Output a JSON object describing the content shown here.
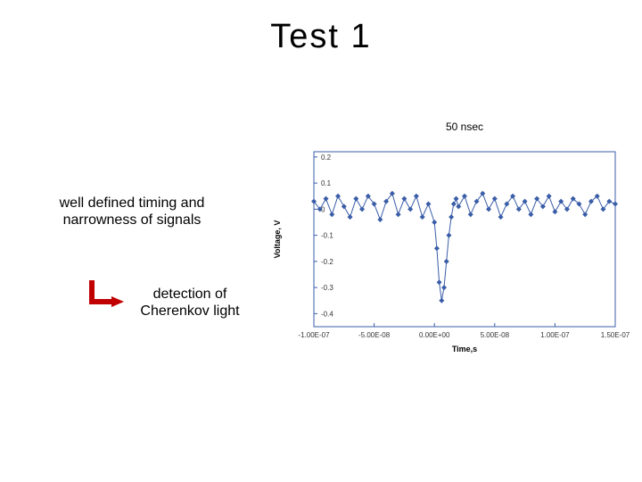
{
  "title": "Test 1",
  "timescale_label": "50 nsec",
  "caption_primary_line1": "well defined timing and",
  "caption_primary_line2": "narrowness of signals",
  "caption_secondary_line1": "detection of",
  "caption_secondary_line2": "Cherenkov light",
  "arrow": {
    "stroke": "#c00000",
    "fill": "#c00000",
    "width": 6
  },
  "chart": {
    "type": "line",
    "xlabel": "Time,s",
    "ylabel": "Voltage, V",
    "label_fontsize": 9,
    "tick_fontsize": 8,
    "xlim": [
      -1e-07,
      1.5e-07
    ],
    "ylim": [
      -0.45,
      0.22
    ],
    "xticks": [
      -1e-07,
      -5e-08,
      0.0,
      5e-08,
      1e-07,
      1.5e-07
    ],
    "xtick_labels": [
      "-1.00E-07",
      "-5.00E-08",
      "0.00E+00",
      "5.00E-08",
      "1.00E-07",
      "1.50E-07"
    ],
    "yticks": [
      -0.4,
      -0.3,
      -0.2,
      -0.1,
      0,
      0.1,
      0.2
    ],
    "ytick_labels": [
      "-0.4",
      "-0.3",
      "-0.2",
      "-0.1",
      "0",
      "0.1",
      "0.2"
    ],
    "background_color": "#ffffff",
    "axis_color": "#3a5da8",
    "grid_on": false,
    "series": {
      "color": "#3a5da8",
      "marker": "diamond",
      "marker_size": 3,
      "line_width": 1,
      "x": [
        -1e-07,
        -9.5e-08,
        -9e-08,
        -8.5e-08,
        -8e-08,
        -7.5e-08,
        -7e-08,
        -6.5e-08,
        -6e-08,
        -5.5e-08,
        -5e-08,
        -4.5e-08,
        -4e-08,
        -3.5e-08,
        -3e-08,
        -2.5e-08,
        -2e-08,
        -1.5e-08,
        -1e-08,
        -5e-09,
        0.0,
        2e-09,
        4e-09,
        6e-09,
        8e-09,
        1e-08,
        1.2e-08,
        1.4e-08,
        1.6e-08,
        1.8e-08,
        2e-08,
        2.5e-08,
        3e-08,
        3.5e-08,
        4e-08,
        4.5e-08,
        5e-08,
        5.5e-08,
        6e-08,
        6.5e-08,
        7e-08,
        7.5e-08,
        8e-08,
        8.5e-08,
        9e-08,
        9.5e-08,
        1e-07,
        1.05e-07,
        1.1e-07,
        1.15e-07,
        1.2e-07,
        1.25e-07,
        1.3e-07,
        1.35e-07,
        1.4e-07,
        1.45e-07,
        1.5e-07
      ],
      "y": [
        0.03,
        0.0,
        0.04,
        -0.02,
        0.05,
        0.01,
        -0.03,
        0.04,
        0.0,
        0.05,
        0.02,
        -0.04,
        0.03,
        0.06,
        -0.02,
        0.04,
        0.0,
        0.05,
        -0.03,
        0.02,
        -0.05,
        -0.15,
        -0.28,
        -0.35,
        -0.3,
        -0.2,
        -0.1,
        -0.03,
        0.02,
        0.04,
        0.01,
        0.05,
        -0.02,
        0.03,
        0.06,
        0.0,
        0.04,
        -0.03,
        0.02,
        0.05,
        0.0,
        0.03,
        -0.02,
        0.04,
        0.01,
        0.05,
        -0.01,
        0.03,
        0.0,
        0.04,
        0.02,
        -0.02,
        0.03,
        0.05,
        0.0,
        0.03,
        0.02
      ]
    }
  }
}
